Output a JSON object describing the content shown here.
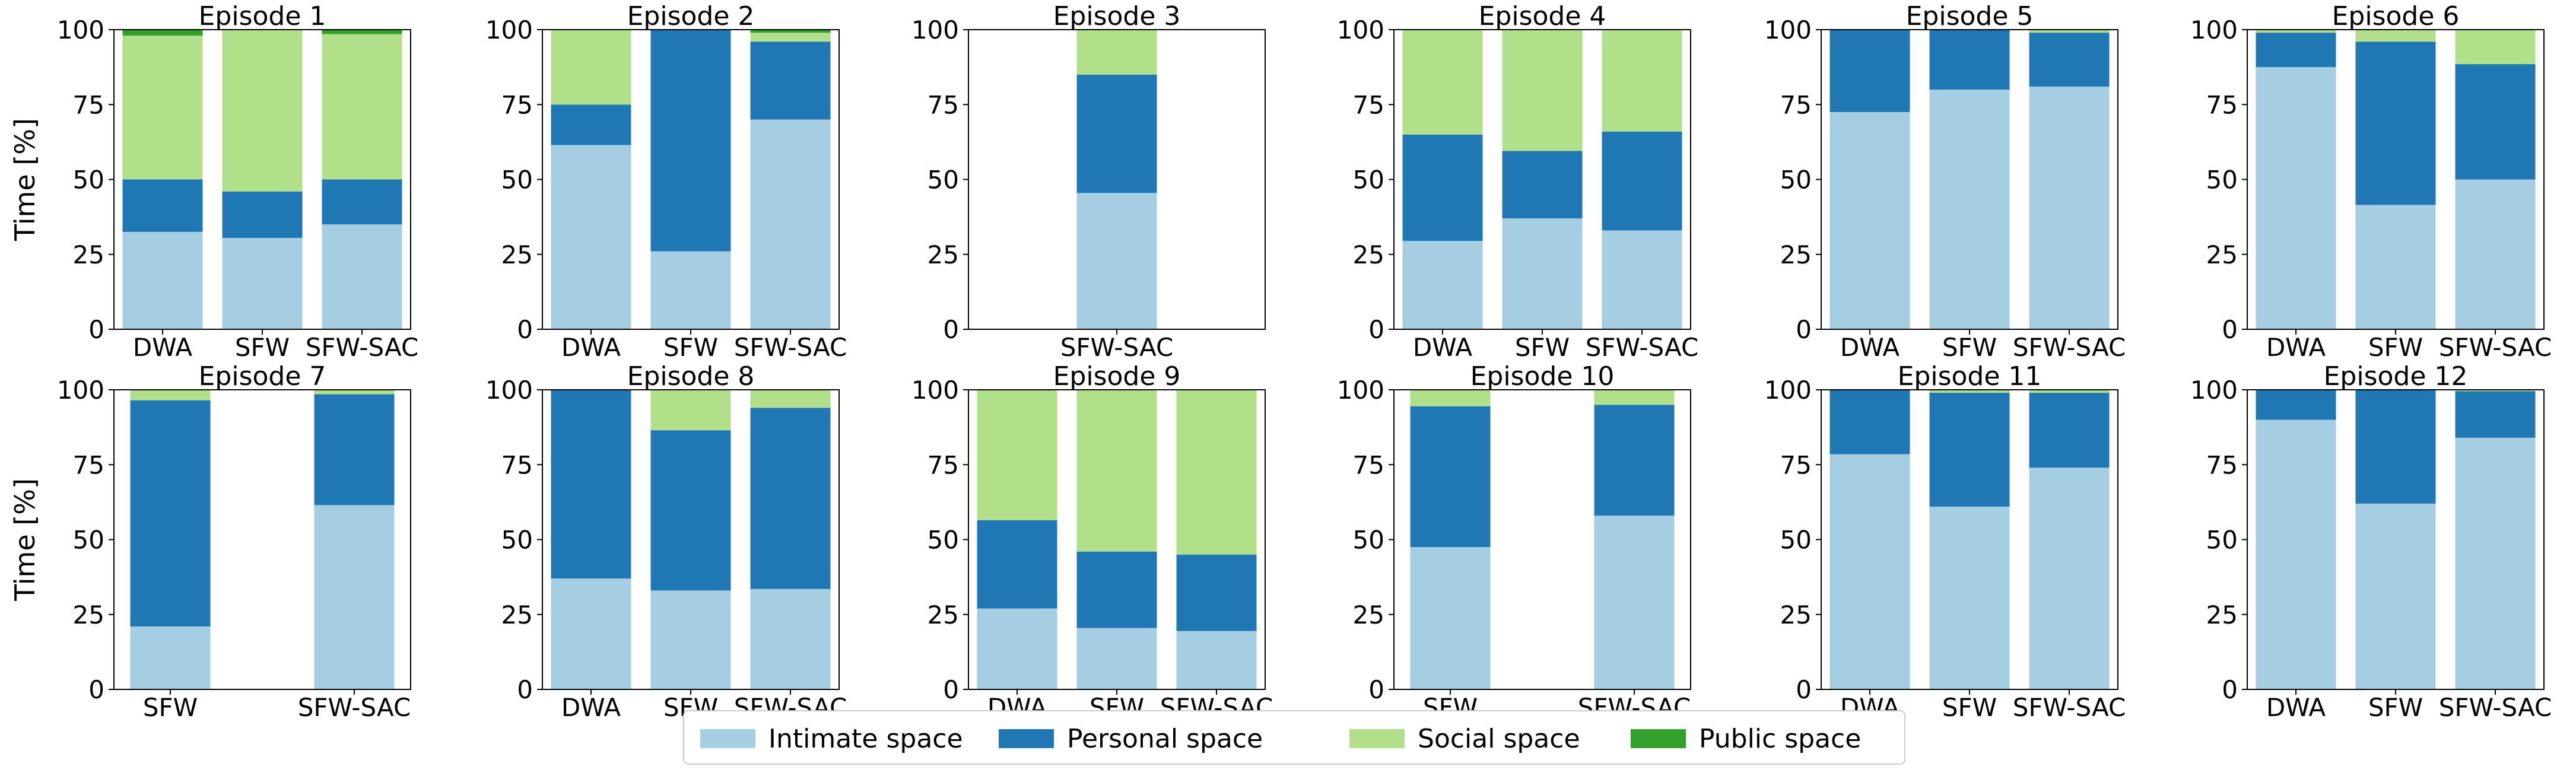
{
  "chart_data": {
    "type": "bar",
    "stacked": true,
    "ylabel": "Time [%]",
    "ylim": [
      0,
      100
    ],
    "yticks": [
      0,
      25,
      50,
      75,
      100
    ],
    "series_names": [
      "Intimate space",
      "Personal space",
      "Social space",
      "Public space"
    ],
    "colors": {
      "Intimate space": "#a6cee3",
      "Personal space": "#1f78b4",
      "Social space": "#b2df8a",
      "Public space": "#33a02c"
    },
    "legend_location": "bottom-center",
    "panels": [
      {
        "title": "Episode 1",
        "categories": [
          "DWA",
          "SFW",
          "SFW-SAC"
        ],
        "series": [
          {
            "name": "Intimate space",
            "values": [
              32.5,
              30.5,
              35
            ]
          },
          {
            "name": "Personal space",
            "values": [
              17.5,
              15.5,
              15
            ]
          },
          {
            "name": "Social space",
            "values": [
              48,
              54,
              48.5
            ]
          },
          {
            "name": "Public space",
            "values": [
              2,
              0,
              1.5
            ]
          }
        ]
      },
      {
        "title": "Episode 2",
        "categories": [
          "DWA",
          "SFW",
          "SFW-SAC"
        ],
        "series": [
          {
            "name": "Intimate space",
            "values": [
              61.5,
              26,
              70
            ]
          },
          {
            "name": "Personal space",
            "values": [
              13.5,
              74,
              26
            ]
          },
          {
            "name": "Social space",
            "values": [
              25,
              0,
              3
            ]
          },
          {
            "name": "Public space",
            "values": [
              0,
              0,
              1
            ]
          }
        ]
      },
      {
        "title": "Episode 3",
        "categories": [
          "SFW-SAC"
        ],
        "series": [
          {
            "name": "Intimate space",
            "values": [
              45.5
            ]
          },
          {
            "name": "Personal space",
            "values": [
              39.5
            ]
          },
          {
            "name": "Social space",
            "values": [
              15
            ]
          },
          {
            "name": "Public space",
            "values": [
              0
            ]
          }
        ]
      },
      {
        "title": "Episode 4",
        "categories": [
          "DWA",
          "SFW",
          "SFW-SAC"
        ],
        "series": [
          {
            "name": "Intimate space",
            "values": [
              29.5,
              37,
              33
            ]
          },
          {
            "name": "Personal space",
            "values": [
              35.5,
              22.5,
              33
            ]
          },
          {
            "name": "Social space",
            "values": [
              35,
              40.5,
              34
            ]
          },
          {
            "name": "Public space",
            "values": [
              0,
              0,
              0
            ]
          }
        ]
      },
      {
        "title": "Episode 5",
        "categories": [
          "DWA",
          "SFW",
          "SFW-SAC"
        ],
        "series": [
          {
            "name": "Intimate space",
            "values": [
              72.5,
              80,
              81
            ]
          },
          {
            "name": "Personal space",
            "values": [
              27.5,
              20,
              18
            ]
          },
          {
            "name": "Social space",
            "values": [
              0,
              0,
              1
            ]
          },
          {
            "name": "Public space",
            "values": [
              0,
              0,
              0
            ]
          }
        ]
      },
      {
        "title": "Episode 6",
        "categories": [
          "DWA",
          "SFW",
          "SFW-SAC"
        ],
        "series": [
          {
            "name": "Intimate space",
            "values": [
              87.5,
              41.5,
              50
            ]
          },
          {
            "name": "Personal space",
            "values": [
              11.5,
              54.5,
              38.5
            ]
          },
          {
            "name": "Social space",
            "values": [
              1,
              4,
              11.5
            ]
          },
          {
            "name": "Public space",
            "values": [
              0,
              0,
              0
            ]
          }
        ]
      },
      {
        "title": "Episode 7",
        "categories": [
          "SFW",
          "SFW-SAC"
        ],
        "series": [
          {
            "name": "Intimate space",
            "values": [
              21,
              61.5
            ]
          },
          {
            "name": "Personal space",
            "values": [
              75.5,
              37
            ]
          },
          {
            "name": "Social space",
            "values": [
              3.5,
              1.5
            ]
          },
          {
            "name": "Public space",
            "values": [
              0,
              0
            ]
          }
        ]
      },
      {
        "title": "Episode 8",
        "categories": [
          "DWA",
          "SFW",
          "SFW-SAC"
        ],
        "series": [
          {
            "name": "Intimate space",
            "values": [
              37,
              33,
              33.5
            ]
          },
          {
            "name": "Personal space",
            "values": [
              63,
              53.5,
              60.5
            ]
          },
          {
            "name": "Social space",
            "values": [
              0,
              13.5,
              6
            ]
          },
          {
            "name": "Public space",
            "values": [
              0,
              0,
              0
            ]
          }
        ]
      },
      {
        "title": "Episode 9",
        "categories": [
          "DWA",
          "SFW",
          "SFW-SAC"
        ],
        "series": [
          {
            "name": "Intimate space",
            "values": [
              27,
              20.5,
              19.5
            ]
          },
          {
            "name": "Personal space",
            "values": [
              29.5,
              25.5,
              25.5
            ]
          },
          {
            "name": "Social space",
            "values": [
              43.5,
              54,
              55
            ]
          },
          {
            "name": "Public space",
            "values": [
              0,
              0,
              0
            ]
          }
        ]
      },
      {
        "title": "Episode 10",
        "categories": [
          "SFW",
          "SFW-SAC"
        ],
        "series": [
          {
            "name": "Intimate space",
            "values": [
              47.5,
              58
            ]
          },
          {
            "name": "Personal space",
            "values": [
              47,
              37
            ]
          },
          {
            "name": "Social space",
            "values": [
              5.5,
              5
            ]
          },
          {
            "name": "Public space",
            "values": [
              0,
              0
            ]
          }
        ]
      },
      {
        "title": "Episode 11",
        "categories": [
          "DWA",
          "SFW",
          "SFW-SAC"
        ],
        "series": [
          {
            "name": "Intimate space",
            "values": [
              78.5,
              61,
              74
            ]
          },
          {
            "name": "Personal space",
            "values": [
              21.5,
              38,
              25
            ]
          },
          {
            "name": "Social space",
            "values": [
              0,
              1,
              1
            ]
          },
          {
            "name": "Public space",
            "values": [
              0,
              0,
              0
            ]
          }
        ]
      },
      {
        "title": "Episode 12",
        "categories": [
          "DWA",
          "SFW",
          "SFW-SAC"
        ],
        "series": [
          {
            "name": "Intimate space",
            "values": [
              90,
              62,
              84
            ]
          },
          {
            "name": "Personal space",
            "values": [
              10,
              38,
              15.5
            ]
          },
          {
            "name": "Social space",
            "values": [
              0,
              0,
              0.5
            ]
          },
          {
            "name": "Public space",
            "values": [
              0,
              0,
              0
            ]
          }
        ]
      }
    ]
  }
}
